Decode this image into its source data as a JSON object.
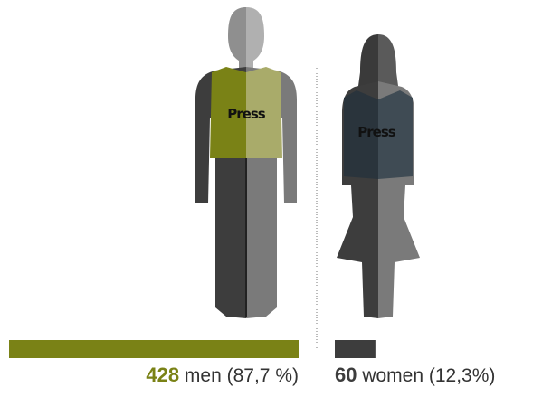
{
  "chart_data": {
    "type": "bar",
    "categories": [
      "men",
      "women"
    ],
    "values": [
      428,
      60
    ],
    "share_labels": [
      "(87,7 %)",
      "(12,3%)"
    ],
    "colors": [
      "#7a8216",
      "#3d3d3d"
    ],
    "vest_labels": [
      "Press",
      "Press"
    ]
  }
}
